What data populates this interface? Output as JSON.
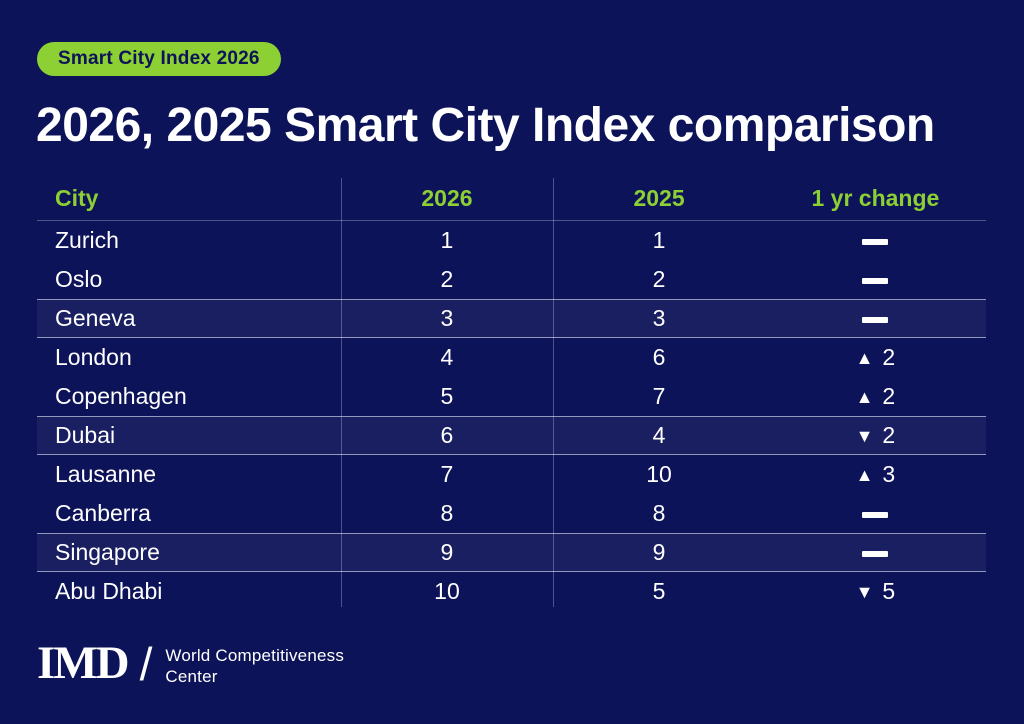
{
  "badge": {
    "label": "Smart City Index 2026"
  },
  "title": "2026, 2025 Smart City Index comparison",
  "table": {
    "columns": [
      "City",
      "2026",
      "2025",
      "1 yr change"
    ],
    "change_symbols": {
      "up": "▲",
      "down": "▼"
    },
    "rows": [
      {
        "city": "Zurich",
        "rank_2026": "1",
        "rank_2025": "1",
        "change": {
          "direction": "none",
          "value": ""
        }
      },
      {
        "city": "Oslo",
        "rank_2026": "2",
        "rank_2025": "2",
        "change": {
          "direction": "none",
          "value": ""
        }
      },
      {
        "city": "Geneva",
        "rank_2026": "3",
        "rank_2025": "3",
        "change": {
          "direction": "none",
          "value": ""
        }
      },
      {
        "city": "London",
        "rank_2026": "4",
        "rank_2025": "6",
        "change": {
          "direction": "up",
          "value": "2"
        }
      },
      {
        "city": "Copenhagen",
        "rank_2026": "5",
        "rank_2025": "7",
        "change": {
          "direction": "up",
          "value": "2"
        }
      },
      {
        "city": "Dubai",
        "rank_2026": "6",
        "rank_2025": "4",
        "change": {
          "direction": "down",
          "value": "2"
        }
      },
      {
        "city": "Lausanne",
        "rank_2026": "7",
        "rank_2025": "10",
        "change": {
          "direction": "up",
          "value": "3"
        }
      },
      {
        "city": "Canberra",
        "rank_2026": "8",
        "rank_2025": "8",
        "change": {
          "direction": "none",
          "value": ""
        }
      },
      {
        "city": "Singapore",
        "rank_2026": "9",
        "rank_2025": "9",
        "change": {
          "direction": "none",
          "value": ""
        }
      },
      {
        "city": "Abu Dhabi",
        "rank_2026": "10",
        "rank_2025": "5",
        "change": {
          "direction": "down",
          "value": "5"
        }
      }
    ]
  },
  "chart_data": {
    "type": "table",
    "title": "2026, 2025 Smart City Index comparison",
    "columns": [
      "City",
      "2026",
      "2025",
      "1 yr change"
    ],
    "rows": [
      [
        "Zurich",
        1,
        1,
        0
      ],
      [
        "Oslo",
        2,
        2,
        0
      ],
      [
        "Geneva",
        3,
        3,
        0
      ],
      [
        "London",
        4,
        6,
        2
      ],
      [
        "Copenhagen",
        5,
        7,
        2
      ],
      [
        "Dubai",
        6,
        4,
        -2
      ],
      [
        "Lausanne",
        7,
        10,
        3
      ],
      [
        "Canberra",
        8,
        8,
        0
      ],
      [
        "Singapore",
        9,
        9,
        0
      ],
      [
        "Abu Dhabi",
        10,
        5,
        -5
      ]
    ]
  },
  "footer": {
    "logo_text": "IMD",
    "slash": "/",
    "org_line1": "World Competitiveness",
    "org_line2": "Center"
  },
  "colors": {
    "background": "#0D1358",
    "accent_green": "#8CD033",
    "text_white": "#FFFFFF",
    "badge_text": "#0D1358"
  }
}
